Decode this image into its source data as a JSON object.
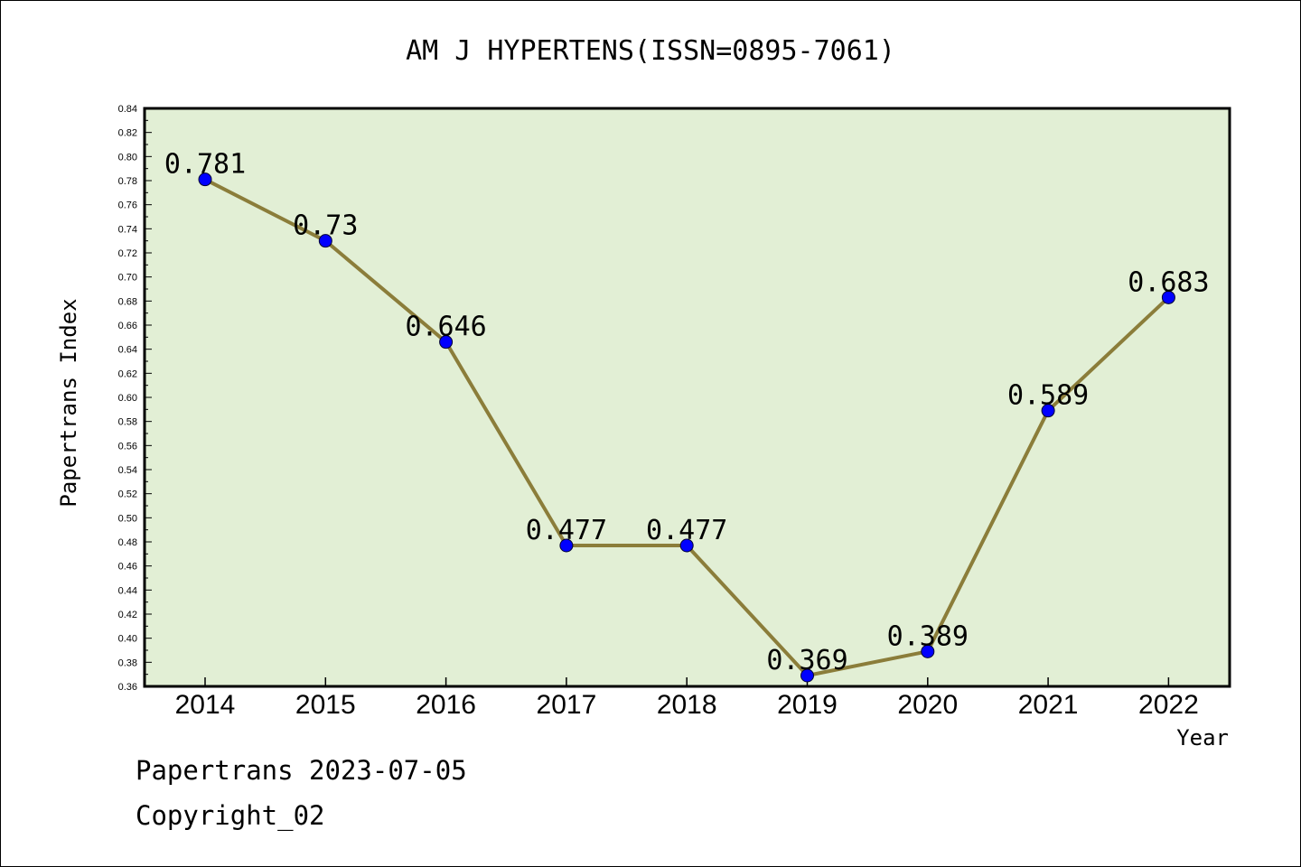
{
  "chart_data": {
    "type": "line",
    "title": "AM J HYPERTENS(ISSN=0895-7061)",
    "xlabel": "Year",
    "ylabel": "Papertrans Index",
    "categories": [
      "2014",
      "2015",
      "2016",
      "2017",
      "2018",
      "2019",
      "2020",
      "2021",
      "2022"
    ],
    "values": [
      0.781,
      0.73,
      0.646,
      0.477,
      0.477,
      0.369,
      0.389,
      0.589,
      0.683
    ],
    "data_labels": [
      "0.781",
      "0.73",
      "0.646",
      "0.477",
      "0.477",
      "0.369",
      "0.389",
      "0.589",
      "0.683"
    ],
    "ylim": [
      0.36,
      0.84
    ],
    "yticks": [
      "0.36",
      "0.38",
      "0.40",
      "0.42",
      "0.44",
      "0.46",
      "0.48",
      "0.50",
      "0.52",
      "0.54",
      "0.56",
      "0.58",
      "0.60",
      "0.62",
      "0.64",
      "0.66",
      "0.68",
      "0.70",
      "0.72",
      "0.74",
      "0.76",
      "0.78",
      "0.80",
      "0.82",
      "0.84"
    ],
    "grid": false,
    "colors": {
      "plot_background": "#e2efd5",
      "line": "#8b7d3a",
      "marker": "#0000ff",
      "axis": "#000000"
    }
  },
  "footer": {
    "date_line": "Papertrans 2023-07-05",
    "copyright": "Copyright_02"
  }
}
